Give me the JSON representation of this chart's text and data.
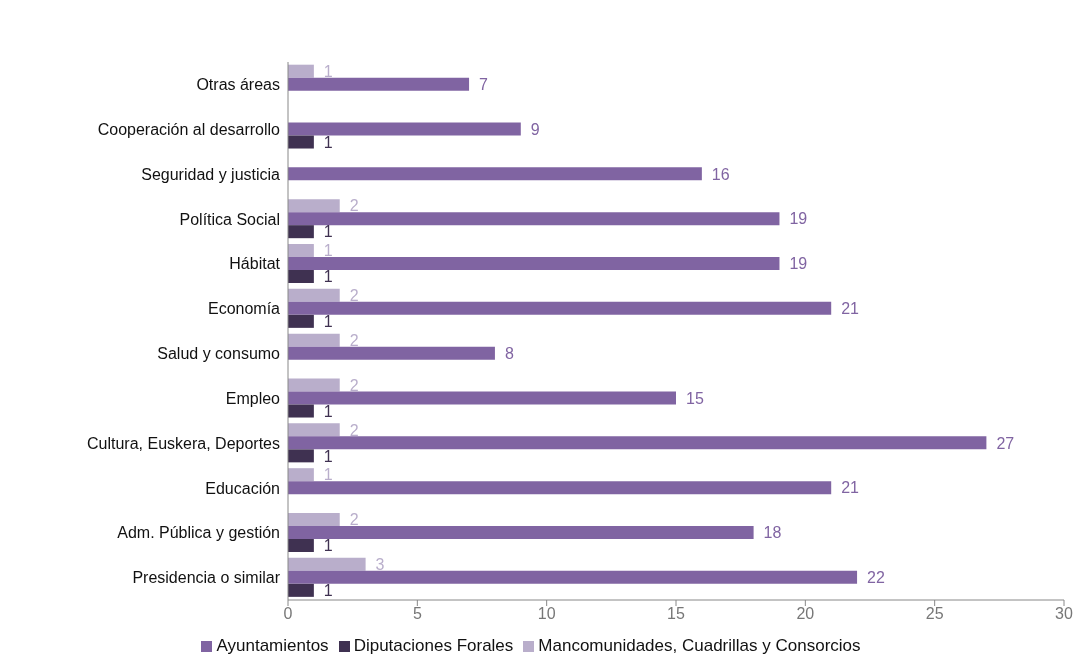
{
  "chart_data": {
    "type": "bar",
    "orientation": "horizontal",
    "categories": [
      "Otras áreas",
      "Cooperación al desarrollo",
      "Seguridad y justicia",
      "Política Social",
      "Hábitat",
      "Economía",
      "Salud y consumo",
      "Empleo",
      "Cultura, Euskera, Deportes",
      "Educación",
      "Adm. Pública y gestión",
      "Presidencia o similar"
    ],
    "series": [
      {
        "name": "Mancomunidades, Cuadrillas y Consorcios",
        "color": "#b9aecb",
        "values": [
          1,
          null,
          null,
          2,
          1,
          2,
          2,
          2,
          2,
          1,
          2,
          3
        ]
      },
      {
        "name": "Ayuntamientos",
        "color": "#8064a2",
        "values": [
          7,
          9,
          16,
          19,
          19,
          21,
          8,
          15,
          27,
          21,
          18,
          22
        ]
      },
      {
        "name": "Diputaciones Forales",
        "color": "#3f3151",
        "values": [
          null,
          1,
          null,
          1,
          1,
          1,
          null,
          1,
          1,
          null,
          1,
          1
        ]
      }
    ],
    "xlim": [
      0,
      30
    ],
    "xticks": [
      0,
      5,
      10,
      15,
      20,
      25,
      30
    ],
    "grid": false,
    "legend": "bottom",
    "data_labels": true
  }
}
